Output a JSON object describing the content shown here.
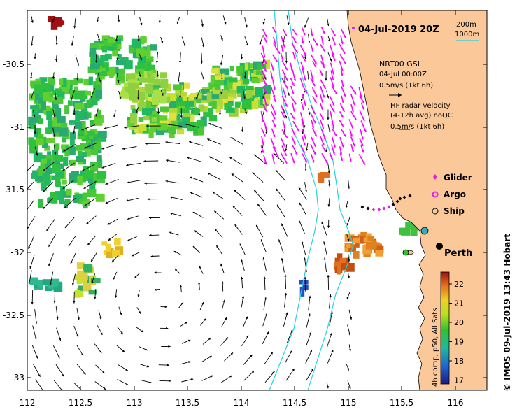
{
  "title": "04-Jul-2019 20Z",
  "contour_legend": {
    "c200": "200m",
    "c1000": "1000m"
  },
  "nrt": {
    "line1": "NRT00 GSL",
    "line2": "04-Jul 00:00Z",
    "line3": "0.5m/s (1kt 6h)"
  },
  "hf": {
    "line1": "HF radar velocity",
    "line2": "(4-12h avg) noQC",
    "line3": "0.5m/s (1kt 6h)"
  },
  "markers": {
    "glider": "Glider",
    "argo": "Argo",
    "ship": "Ship"
  },
  "city": "Perth",
  "colorbar": {
    "label": "4h comp, p50, All Sats",
    "ticks": [
      "22",
      "21",
      "20",
      "19",
      "18",
      "17"
    ]
  },
  "credit": "© IMOS 09-Jul-2019 13:43 Hobart",
  "axes": {
    "x_ticks": [
      "112",
      "112.5",
      "113",
      "113.5",
      "114",
      "114.5",
      "115",
      "115.5",
      "116"
    ],
    "y_ticks": [
      "-30.5",
      "-31",
      "-31.5",
      "-32",
      "-32.5",
      "-33"
    ]
  },
  "colors": {
    "land": "#fbc89a",
    "contour": "#22d3e0",
    "hf_arrow": "#ff00ff",
    "glider": "#e020e0"
  }
}
